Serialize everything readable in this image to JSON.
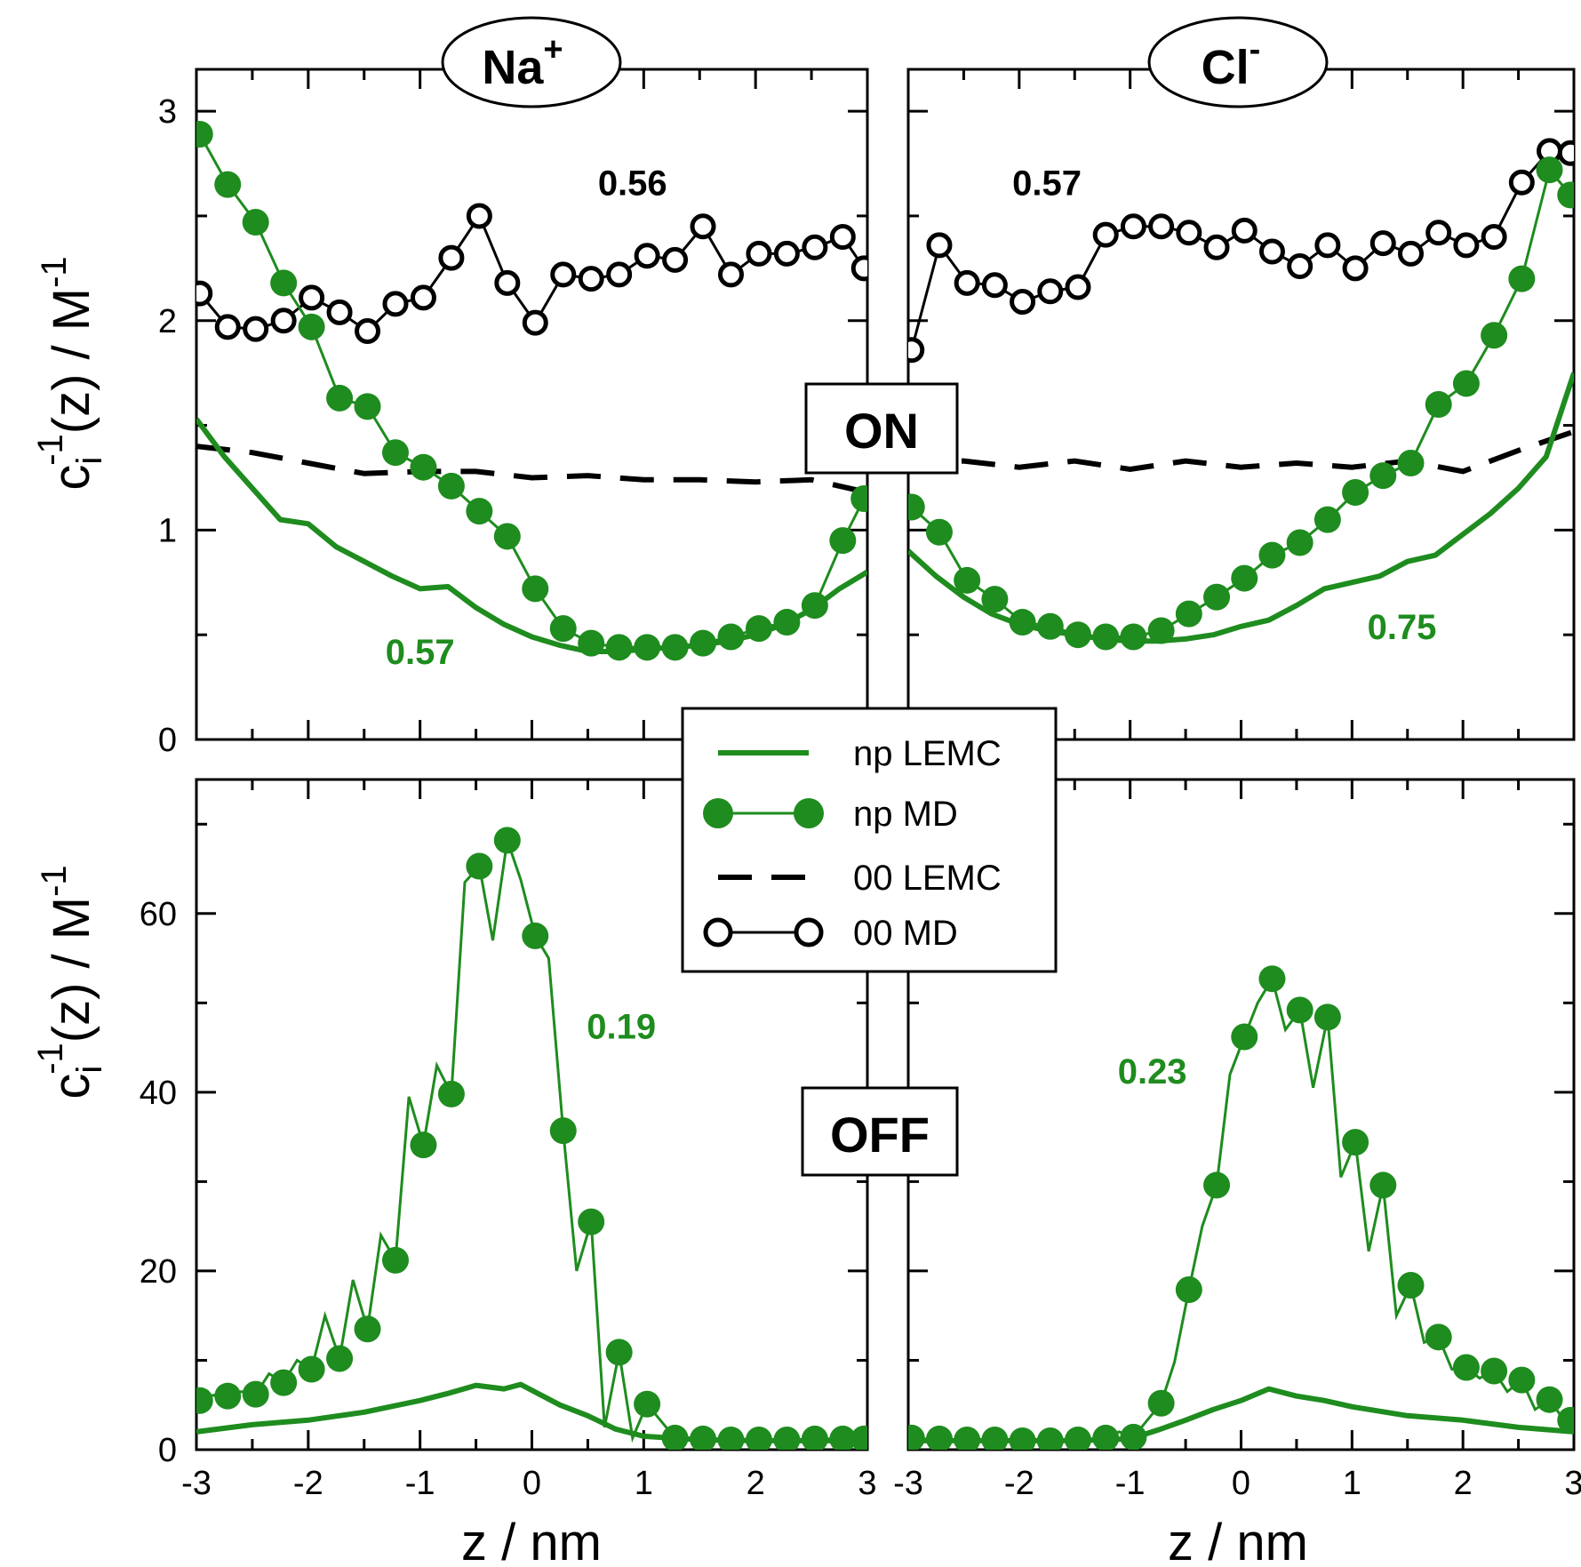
{
  "colors": {
    "green": "#1e8c1e",
    "black": "#000000"
  },
  "ion_labels": {
    "na": {
      "base": "Na",
      "sup": "+"
    },
    "cl": {
      "base": "Cl",
      "sup": "-"
    }
  },
  "state_labels": {
    "on": "ON",
    "off": "OFF"
  },
  "legend": [
    {
      "label": "np LEMC",
      "style": "solid-green"
    },
    {
      "label": "np MD",
      "style": "green-filled-circles"
    },
    {
      "label": "00 LEMC",
      "style": "black-dashed"
    },
    {
      "label": "00 MD",
      "style": "black-open-circles"
    }
  ],
  "chart_data": [
    {
      "id": "na_on",
      "type": "line",
      "ion": "Na+",
      "state": "ON",
      "xlim": [
        -3,
        3
      ],
      "ylim": [
        0,
        3.2
      ],
      "yticks": [
        "0",
        "1",
        "2",
        "3"
      ],
      "ylabel": {
        "base": "c",
        "sup": "-1",
        "sub": "i",
        "rest": "(z) / M",
        "unitsup": "-1"
      },
      "annotations": [
        {
          "text": "0.56",
          "color": "black",
          "x": 0.9,
          "y": 2.6
        },
        {
          "text": "0.57",
          "color": "green",
          "x": -1.0,
          "y": 0.36
        }
      ],
      "series": [
        {
          "name": "np LEMC",
          "style": "solid-green",
          "x": [
            -3.0,
            -2.75,
            -2.5,
            -2.25,
            -2.0,
            -1.75,
            -1.5,
            -1.25,
            -1.0,
            -0.75,
            -0.5,
            -0.25,
            0.0,
            0.25,
            0.5,
            0.75,
            1.0,
            1.25,
            1.5,
            1.75,
            2.0,
            2.25,
            2.5,
            2.75,
            3.0
          ],
          "y": [
            1.53,
            1.35,
            1.2,
            1.05,
            1.03,
            0.92,
            0.85,
            0.78,
            0.72,
            0.73,
            0.63,
            0.55,
            0.49,
            0.45,
            0.42,
            0.42,
            0.43,
            0.44,
            0.45,
            0.47,
            0.5,
            0.55,
            0.62,
            0.72,
            0.8
          ]
        },
        {
          "name": "np MD",
          "style": "green-filled-circles",
          "x": [
            -2.97,
            -2.72,
            -2.47,
            -2.22,
            -1.97,
            -1.72,
            -1.47,
            -1.22,
            -0.97,
            -0.72,
            -0.47,
            -0.22,
            0.03,
            0.28,
            0.53,
            0.78,
            1.03,
            1.28,
            1.53,
            1.78,
            2.03,
            2.28,
            2.53,
            2.78,
            2.97
          ],
          "y": [
            2.89,
            2.65,
            2.47,
            2.18,
            1.97,
            1.63,
            1.59,
            1.37,
            1.3,
            1.21,
            1.09,
            0.97,
            0.72,
            0.53,
            0.46,
            0.44,
            0.44,
            0.44,
            0.46,
            0.49,
            0.53,
            0.56,
            0.64,
            0.95,
            1.15
          ]
        },
        {
          "name": "00 LEMC",
          "style": "black-dashed",
          "x": [
            -3.0,
            -2.5,
            -2.0,
            -1.5,
            -1.0,
            -0.5,
            0.0,
            0.5,
            1.0,
            1.5,
            2.0,
            2.5,
            3.0
          ],
          "y": [
            1.4,
            1.37,
            1.32,
            1.27,
            1.28,
            1.28,
            1.25,
            1.26,
            1.24,
            1.24,
            1.23,
            1.24,
            1.18
          ]
        },
        {
          "name": "00 MD",
          "style": "black-open-circles",
          "x": [
            -2.97,
            -2.72,
            -2.47,
            -2.22,
            -1.97,
            -1.72,
            -1.47,
            -1.22,
            -0.97,
            -0.72,
            -0.47,
            -0.22,
            0.03,
            0.28,
            0.53,
            0.78,
            1.03,
            1.28,
            1.53,
            1.78,
            2.03,
            2.28,
            2.53,
            2.78,
            2.97
          ],
          "y": [
            2.13,
            1.97,
            1.96,
            2.0,
            2.11,
            2.04,
            1.95,
            2.08,
            2.11,
            2.3,
            2.5,
            2.18,
            1.99,
            2.22,
            2.2,
            2.22,
            2.31,
            2.29,
            2.45,
            2.22,
            2.32,
            2.32,
            2.35,
            2.4,
            2.25
          ]
        }
      ]
    },
    {
      "id": "cl_on",
      "type": "line",
      "ion": "Cl-",
      "state": "ON",
      "xlim": [
        -3,
        3
      ],
      "ylim": [
        0,
        3.2
      ],
      "yticks": [],
      "annotations": [
        {
          "text": "0.57",
          "color": "black",
          "x": -1.75,
          "y": 2.6
        },
        {
          "text": "0.75",
          "color": "green",
          "x": 1.45,
          "y": 0.48
        }
      ],
      "series": [
        {
          "name": "np LEMC",
          "style": "solid-green",
          "x": [
            -3.0,
            -2.75,
            -2.5,
            -2.25,
            -2.0,
            -1.75,
            -1.5,
            -1.25,
            -1.0,
            -0.75,
            -0.5,
            -0.25,
            0.0,
            0.25,
            0.5,
            0.75,
            1.0,
            1.25,
            1.5,
            1.75,
            2.0,
            2.25,
            2.5,
            2.75,
            3.0
          ],
          "y": [
            0.9,
            0.78,
            0.68,
            0.6,
            0.55,
            0.52,
            0.5,
            0.48,
            0.47,
            0.47,
            0.48,
            0.5,
            0.54,
            0.57,
            0.64,
            0.72,
            0.75,
            0.78,
            0.85,
            0.88,
            0.98,
            1.08,
            1.2,
            1.35,
            1.75
          ]
        },
        {
          "name": "np MD",
          "style": "green-filled-circles",
          "x": [
            -2.97,
            -2.72,
            -2.47,
            -2.22,
            -1.97,
            -1.72,
            -1.47,
            -1.22,
            -0.97,
            -0.72,
            -0.47,
            -0.22,
            0.03,
            0.28,
            0.53,
            0.78,
            1.03,
            1.28,
            1.53,
            1.78,
            2.03,
            2.28,
            2.53,
            2.78,
            2.97
          ],
          "y": [
            1.11,
            0.99,
            0.76,
            0.67,
            0.56,
            0.54,
            0.5,
            0.49,
            0.49,
            0.52,
            0.6,
            0.68,
            0.77,
            0.88,
            0.94,
            1.05,
            1.18,
            1.26,
            1.32,
            1.6,
            1.7,
            1.93,
            2.2,
            2.72,
            2.6
          ]
        },
        {
          "name": "00 LEMC",
          "style": "black-dashed",
          "x": [
            -3.0,
            -2.5,
            -2.0,
            -1.5,
            -1.0,
            -0.5,
            0.0,
            0.5,
            1.0,
            1.5,
            2.0,
            2.5,
            3.0
          ],
          "y": [
            1.32,
            1.33,
            1.3,
            1.33,
            1.29,
            1.33,
            1.3,
            1.32,
            1.3,
            1.33,
            1.28,
            1.38,
            1.47
          ]
        },
        {
          "name": "00 MD",
          "style": "black-open-circles",
          "x": [
            -2.97,
            -2.72,
            -2.47,
            -2.22,
            -1.97,
            -1.72,
            -1.47,
            -1.22,
            -0.97,
            -0.72,
            -0.47,
            -0.22,
            0.03,
            0.28,
            0.53,
            0.78,
            1.03,
            1.28,
            1.53,
            1.78,
            2.03,
            2.28,
            2.53,
            2.78,
            2.97
          ],
          "y": [
            1.86,
            2.36,
            2.18,
            2.17,
            2.09,
            2.14,
            2.16,
            2.41,
            2.45,
            2.45,
            2.42,
            2.35,
            2.43,
            2.33,
            2.26,
            2.36,
            2.25,
            2.37,
            2.32,
            2.42,
            2.36,
            2.4,
            2.66,
            2.81,
            2.8
          ]
        }
      ]
    },
    {
      "id": "na_off",
      "type": "line",
      "ion": "Na+",
      "state": "OFF",
      "xlim": [
        -3,
        3
      ],
      "ylim": [
        0,
        75
      ],
      "yticks": [
        "0",
        "20",
        "40",
        "60"
      ],
      "xticks": [
        "-3",
        "-2",
        "-1",
        "0",
        "1",
        "2",
        "3"
      ],
      "xlabel": "z / nm",
      "ylabel": {
        "base": "c",
        "sup": "-1",
        "sub": "i",
        "rest": "(z) / M",
        "unitsup": "-1"
      },
      "annotations": [
        {
          "text": "0.19",
          "color": "green",
          "x": 0.8,
          "y": 46
        }
      ],
      "series": [
        {
          "name": "np LEMC",
          "style": "solid-green",
          "x": [
            -3.0,
            -2.5,
            -2.0,
            -1.5,
            -1.0,
            -0.75,
            -0.5,
            -0.25,
            -0.1,
            0.25,
            0.5,
            0.75,
            1.0,
            1.5,
            2.0,
            2.5,
            3.0
          ],
          "y": [
            2.0,
            2.8,
            3.3,
            4.2,
            5.5,
            6.3,
            7.2,
            6.8,
            7.3,
            5.0,
            3.8,
            2.3,
            1.5,
            1.1,
            1.0,
            1.0,
            1.0
          ]
        },
        {
          "name": "np MD",
          "style": "green-filled-circles",
          "x": [
            -2.97,
            -2.72,
            -2.47,
            -2.22,
            -1.97,
            -1.72,
            -1.47,
            -1.22,
            -0.97,
            -0.72,
            -0.47,
            -0.22,
            0.03,
            0.28,
            0.53,
            0.78,
            1.03,
            1.28,
            1.53,
            1.78,
            2.03,
            2.28,
            2.53,
            2.78,
            2.97,
            -2.85,
            -2.6,
            -2.35,
            -2.1,
            -1.85,
            -1.6,
            -1.35,
            -1.1,
            -0.85,
            -0.6,
            -0.35,
            -0.1,
            0.15,
            0.4,
            0.65,
            0.9
          ],
          "y": [
            5.5,
            6.0,
            6.2,
            7.5,
            9.0,
            10.2,
            13.5,
            21.2,
            34.1,
            39.8,
            65.3,
            68.2,
            57.5,
            35.7,
            25.5,
            10.9,
            5.1,
            1.3,
            1.2,
            1.1,
            1.1,
            1.1,
            1.2,
            1.2,
            1.2,
            6.1,
            6.5,
            8.5,
            10.0,
            15.0,
            19.0,
            24.0,
            39.5,
            43.0,
            63.5,
            57.0,
            63.8,
            55.0,
            20.0,
            2.5,
            1.3
          ]
        },
        {
          "name": "00 LEMC",
          "style": "black-dashed",
          "x": [],
          "y": []
        },
        {
          "name": "00 MD",
          "style": "black-open-circles",
          "x": [],
          "y": []
        }
      ]
    },
    {
      "id": "cl_off",
      "type": "line",
      "ion": "Cl-",
      "state": "OFF",
      "xlim": [
        -3,
        3
      ],
      "ylim": [
        0,
        75
      ],
      "yticks": [],
      "xticks": [
        "-3",
        "-2",
        "-1",
        "0",
        "1",
        "2",
        "3"
      ],
      "xlabel": "z / nm",
      "annotations": [
        {
          "text": "0.23",
          "color": "green",
          "x": -0.8,
          "y": 41
        }
      ],
      "series": [
        {
          "name": "np LEMC",
          "style": "solid-green",
          "x": [
            -3.0,
            -2.5,
            -2.0,
            -1.5,
            -1.0,
            -0.75,
            -0.5,
            -0.25,
            0.0,
            0.25,
            0.5,
            0.75,
            1.0,
            1.5,
            2.0,
            2.5,
            3.0
          ],
          "y": [
            1.0,
            1.0,
            1.0,
            1.0,
            1.2,
            2.2,
            3.3,
            4.5,
            5.5,
            6.8,
            6.0,
            5.5,
            4.8,
            3.8,
            3.3,
            2.5,
            2.0
          ]
        },
        {
          "name": "np MD",
          "style": "green-filled-circles",
          "x": [
            -2.97,
            -2.72,
            -2.47,
            -2.22,
            -1.97,
            -1.72,
            -1.47,
            -1.22,
            -0.97,
            -0.72,
            -0.47,
            -0.22,
            0.03,
            0.28,
            0.53,
            0.78,
            1.03,
            1.28,
            1.53,
            1.78,
            2.03,
            2.28,
            2.53,
            2.78,
            2.97,
            -2.85,
            -2.6,
            -2.35,
            -2.1,
            -1.85,
            -1.6,
            -1.35,
            -1.1,
            -0.6,
            -0.35,
            -0.1,
            0.15,
            0.4,
            0.65,
            0.9,
            1.15,
            1.4,
            1.65,
            1.9,
            2.15,
            2.4,
            2.65,
            2.9
          ],
          "y": [
            1.3,
            1.2,
            1.1,
            1.1,
            1.0,
            1.0,
            1.1,
            1.3,
            1.4,
            5.2,
            17.9,
            29.6,
            46.2,
            52.7,
            49.2,
            48.4,
            34.4,
            29.6,
            18.4,
            12.6,
            9.2,
            8.8,
            7.8,
            5.6,
            3.3,
            1.2,
            1.1,
            1.1,
            1.0,
            1.0,
            1.0,
            1.2,
            2.0,
            9.8,
            25.0,
            42.0,
            50.0,
            47.0,
            40.5,
            30.5,
            22.2,
            15.0,
            12.0,
            9.0,
            8.0,
            6.5,
            4.5,
            3.5
          ]
        },
        {
          "name": "00 LEMC",
          "style": "black-dashed",
          "x": [],
          "y": []
        },
        {
          "name": "00 MD",
          "style": "black-open-circles",
          "x": [],
          "y": []
        }
      ]
    }
  ]
}
